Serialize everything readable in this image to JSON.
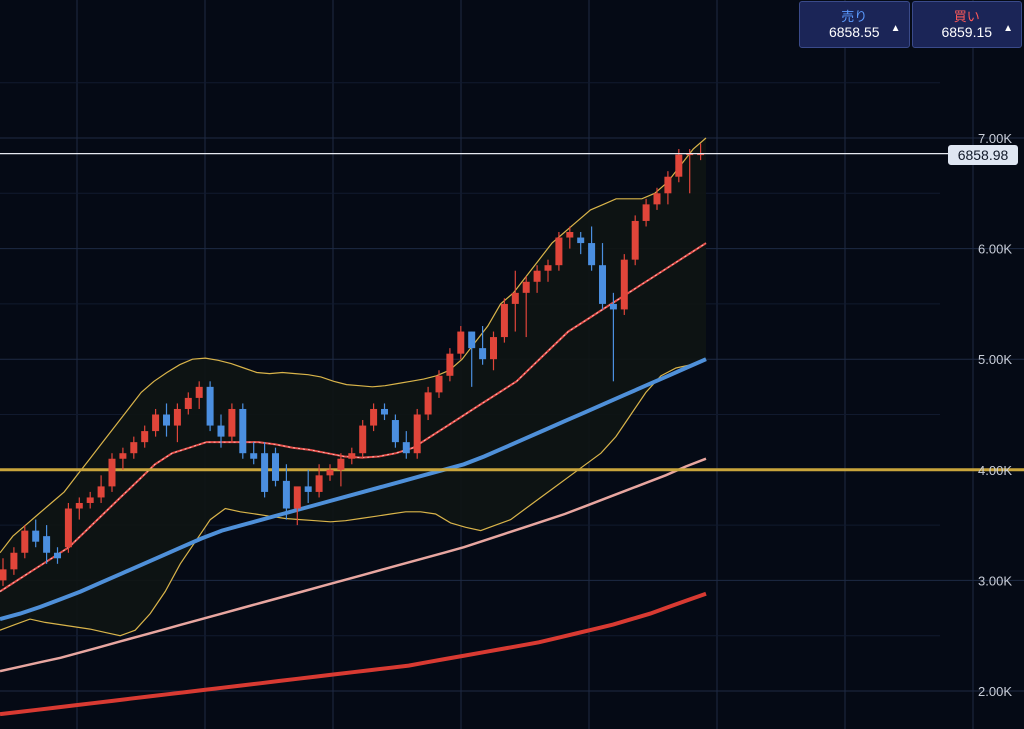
{
  "trade_panel": {
    "sell_label": "売り",
    "sell_price": "6858.55",
    "buy_label": "買い",
    "buy_price": "6859.15",
    "arrow": "▲"
  },
  "current_price_label": "6858.98",
  "colors": {
    "background": "#050a15",
    "grid": "#1e2a44",
    "candle_up": "#e0453a",
    "candle_down": "#4b8fe0",
    "bollinger_band": "#d9b44a",
    "band_fill": "#0e1413",
    "middle_line": "#e8504a",
    "ma_blue": "#4f90d9",
    "ma_pink": "#e8a6a0",
    "ma_red": "#d83a32",
    "horizontal_line": "#c9a53c",
    "price_line": "#e6e9f0"
  },
  "chart_data": {
    "type": "candlestick",
    "y_axis": {
      "min": 1700,
      "max": 7500,
      "tick_labels": [
        "2.00K",
        "3.00K",
        "4.00K",
        "5.00K",
        "6.00K",
        "7.00K"
      ],
      "tick_values": [
        2000,
        3000,
        4000,
        5000,
        6000,
        7000
      ],
      "side": "right"
    },
    "grid": true,
    "horizontal_line": 4000,
    "current_price": 6858.98,
    "candles": [
      [
        3000,
        3200,
        2950,
        3100
      ],
      [
        3100,
        3300,
        3050,
        3250
      ],
      [
        3250,
        3500,
        3200,
        3450
      ],
      [
        3450,
        3550,
        3300,
        3350
      ],
      [
        3400,
        3500,
        3150,
        3250
      ],
      [
        3250,
        3300,
        3150,
        3200
      ],
      [
        3300,
        3700,
        3250,
        3650
      ],
      [
        3650,
        3750,
        3550,
        3700
      ],
      [
        3700,
        3800,
        3650,
        3750
      ],
      [
        3750,
        3950,
        3700,
        3850
      ],
      [
        3850,
        4150,
        3800,
        4100
      ],
      [
        4100,
        4200,
        4000,
        4150
      ],
      [
        4150,
        4300,
        4100,
        4250
      ],
      [
        4250,
        4400,
        4200,
        4350
      ],
      [
        4350,
        4550,
        4300,
        4500
      ],
      [
        4500,
        4600,
        4300,
        4400
      ],
      [
        4400,
        4600,
        4250,
        4550
      ],
      [
        4550,
        4700,
        4500,
        4650
      ],
      [
        4650,
        4800,
        4550,
        4750
      ],
      [
        4750,
        4800,
        4350,
        4400
      ],
      [
        4400,
        4500,
        4200,
        4300
      ],
      [
        4300,
        4600,
        4250,
        4550
      ],
      [
        4550,
        4600,
        4100,
        4150
      ],
      [
        4150,
        4250,
        4050,
        4100
      ],
      [
        4150,
        4250,
        3750,
        3800
      ],
      [
        4150,
        4200,
        3850,
        3900
      ],
      [
        3900,
        4050,
        3550,
        3650
      ],
      [
        3650,
        3800,
        3500,
        3850
      ],
      [
        3850,
        4000,
        3700,
        3800
      ],
      [
        3800,
        4050,
        3750,
        3950
      ],
      [
        3950,
        4050,
        3900,
        4000
      ],
      [
        4000,
        4150,
        3850,
        4100
      ],
      [
        4100,
        4200,
        4050,
        4150
      ],
      [
        4150,
        4450,
        4100,
        4400
      ],
      [
        4400,
        4600,
        4350,
        4550
      ],
      [
        4550,
        4600,
        4450,
        4500
      ],
      [
        4450,
        4500,
        4200,
        4250
      ],
      [
        4250,
        4350,
        4100,
        4150
      ],
      [
        4150,
        4550,
        4100,
        4500
      ],
      [
        4500,
        4750,
        4450,
        4700
      ],
      [
        4700,
        4900,
        4650,
        4850
      ],
      [
        4850,
        5100,
        4800,
        5050
      ],
      [
        5050,
        5300,
        5000,
        5250
      ],
      [
        5250,
        5250,
        4750,
        5100
      ],
      [
        5100,
        5300,
        4950,
        5000
      ],
      [
        5000,
        5250,
        4900,
        5200
      ],
      [
        5200,
        5550,
        5150,
        5500
      ],
      [
        5500,
        5800,
        5250,
        5600
      ],
      [
        5600,
        5750,
        5200,
        5700
      ],
      [
        5700,
        5850,
        5600,
        5800
      ],
      [
        5800,
        5900,
        5700,
        5850
      ],
      [
        5850,
        6150,
        5800,
        6100
      ],
      [
        6100,
        6200,
        6000,
        6150
      ],
      [
        6100,
        6150,
        5950,
        6050
      ],
      [
        6050,
        6200,
        5800,
        5850
      ],
      [
        5850,
        6050,
        5450,
        5500
      ],
      [
        5500,
        5600,
        4800,
        5450
      ],
      [
        5450,
        5950,
        5400,
        5900
      ],
      [
        5900,
        6300,
        5850,
        6250
      ],
      [
        6250,
        6450,
        6200,
        6400
      ],
      [
        6400,
        6550,
        6350,
        6500
      ],
      [
        6500,
        6700,
        6400,
        6650
      ],
      [
        6650,
        6900,
        6600,
        6850
      ],
      [
        6850,
        6900,
        6500,
        6858.98
      ],
      [
        6858.98,
        6950,
        6800,
        6858.98
      ]
    ],
    "bollinger_upper": [
      3250,
      3400,
      3500,
      3600,
      3700,
      3800,
      3950,
      4100,
      4250,
      4400,
      4550,
      4700,
      4800,
      4880,
      4950,
      5000,
      5010,
      4990,
      4960,
      4920,
      4880,
      4870,
      4880,
      4870,
      4860,
      4840,
      4800,
      4770,
      4760,
      4750,
      4760,
      4780,
      4800,
      4820,
      4850,
      4900,
      5000,
      5150,
      5300,
      5500,
      5600,
      5750,
      5900,
      6050,
      6150,
      6250,
      6350,
      6400,
      6450,
      6450,
      6450,
      6500,
      6600,
      6750,
      6900,
      7000
    ],
    "bollinger_lower": [
      2550,
      2600,
      2650,
      2620,
      2600,
      2580,
      2560,
      2530,
      2500,
      2550,
      2700,
      2900,
      3150,
      3350,
      3550,
      3650,
      3620,
      3600,
      3580,
      3560,
      3550,
      3540,
      3530,
      3540,
      3560,
      3580,
      3600,
      3620,
      3620,
      3600,
      3520,
      3480,
      3450,
      3500,
      3550,
      3650,
      3750,
      3850,
      3950,
      4050,
      4150,
      4300,
      4500,
      4700,
      4850,
      4920,
      4950,
      5000
    ],
    "bollinger_middle": [
      2900,
      3000,
      3100,
      3200,
      3300,
      3450,
      3600,
      3750,
      3900,
      4050,
      4150,
      4200,
      4250,
      4250,
      4250,
      4250,
      4230,
      4200,
      4180,
      4150,
      4120,
      4110,
      4120,
      4150,
      4200,
      4300,
      4400,
      4500,
      4600,
      4700,
      4800,
      4950,
      5100,
      5250,
      5350,
      5450,
      5550,
      5650,
      5750,
      5850,
      5950,
      6050
    ],
    "ma_blue": [
      2650,
      2700,
      2760,
      2830,
      2900,
      2980,
      3060,
      3140,
      3220,
      3300,
      3380,
      3450,
      3500,
      3550,
      3600,
      3650,
      3700,
      3750,
      3800,
      3850,
      3900,
      3950,
      4000,
      4050,
      4120,
      4200,
      4280,
      4360,
      4440,
      4520,
      4600,
      4680,
      4760,
      4840,
      4920,
      5000
    ],
    "ma_pink": [
      2180,
      2220,
      2260,
      2300,
      2350,
      2400,
      2450,
      2500,
      2550,
      2600,
      2650,
      2700,
      2750,
      2800,
      2850,
      2900,
      2950,
      3000,
      3050,
      3100,
      3150,
      3200,
      3250,
      3300,
      3360,
      3420,
      3480,
      3540,
      3600,
      3670,
      3740,
      3810,
      3880,
      3950,
      4030,
      4100
    ],
    "ma_red": [
      1790,
      1810,
      1830,
      1850,
      1870,
      1890,
      1910,
      1930,
      1950,
      1970,
      1990,
      2010,
      2030,
      2050,
      2070,
      2090,
      2110,
      2130,
      2150,
      2170,
      2190,
      2210,
      2230,
      2260,
      2290,
      2320,
      2350,
      2380,
      2410,
      2440,
      2480,
      2520,
      2560,
      2600,
      2650,
      2700,
      2760,
      2820,
      2880
    ]
  }
}
